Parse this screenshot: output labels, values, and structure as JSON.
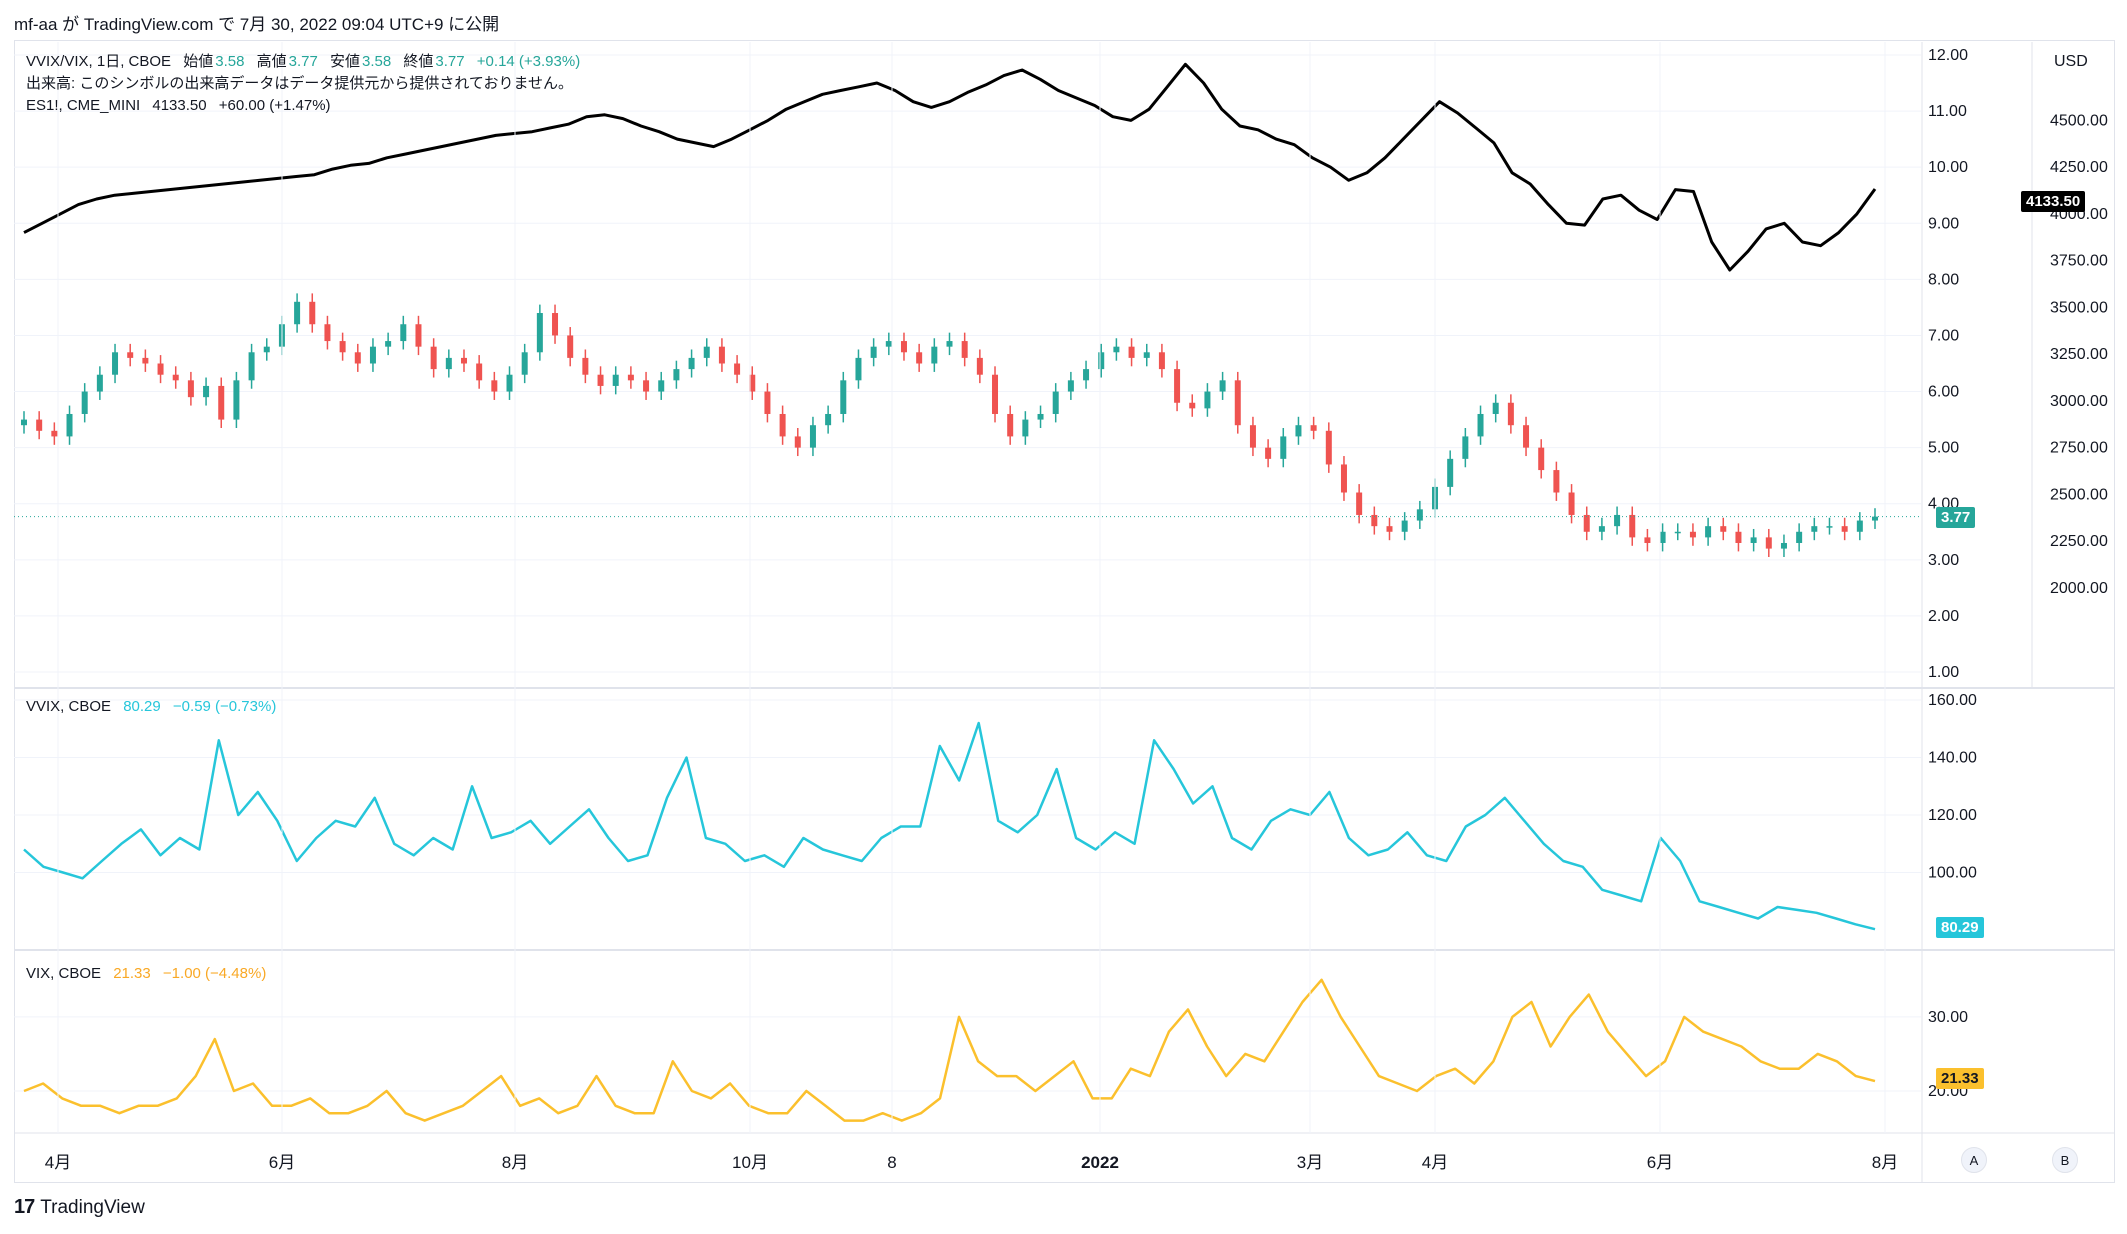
{
  "header": {
    "text": "mf-aa が TradingView.com で 7月 30, 2022 09:04 UTC+9 に公開"
  },
  "legend_main": {
    "symbol": "VVIX/VIX, 1日, CBOE",
    "o_label": "始値",
    "o_val": "3.58",
    "h_label": "高値",
    "h_val": "3.77",
    "l_label": "安値",
    "l_val": "3.58",
    "c_label": "終値",
    "c_val": "3.77",
    "change": "+0.14 (+3.93%)",
    "volume_note": "出来高: このシンボルの出来高データはデータ提供元から提供されておりません。",
    "es_symbol": "ES1!, CME_MINI",
    "es_val": "4133.50",
    "es_change": "+60.00 (+1.47%)"
  },
  "legend_vvix": {
    "symbol": "VVIX, CBOE",
    "val": "80.29",
    "change": "−0.59 (−0.73%)"
  },
  "legend_vix": {
    "symbol": "VIX, CBOE",
    "val": "21.33",
    "change": "−1.00 (−4.48%)"
  },
  "price_tags": {
    "es": "4133.50",
    "ratio": "3.77",
    "vvix": "80.29",
    "vix": "21.33"
  },
  "axis_buttons": {
    "a": "A",
    "b": "B"
  },
  "footer": {
    "logo_mark": "17",
    "logo_text": "TradingView"
  },
  "colors": {
    "up": "#26a69a",
    "down": "#ef5350",
    "vvix": "#26c6da",
    "vix": "#fbc02d",
    "es": "#000000"
  },
  "chart_data": [
    {
      "type": "candlestick",
      "series": [
        {
          "name": "VVIX/VIX"
        }
      ],
      "y_ticks": [
        "12.00",
        "11.00",
        "10.00",
        "9.00",
        "8.00",
        "7.00",
        "6.00",
        "5.00",
        "4.00",
        "3.00",
        "2.00",
        "1.00"
      ],
      "ylim": [
        1,
        12
      ],
      "last": 3.77,
      "values": [
        5.5,
        5.3,
        5.2,
        5.6,
        6.0,
        6.3,
        6.7,
        6.6,
        6.5,
        6.3,
        6.2,
        5.9,
        6.1,
        5.5,
        6.2,
        6.7,
        6.8,
        7.2,
        7.6,
        7.2,
        6.9,
        6.7,
        6.5,
        6.8,
        6.9,
        7.2,
        6.8,
        6.4,
        6.6,
        6.5,
        6.2,
        6.0,
        6.3,
        6.7,
        7.4,
        7.0,
        6.6,
        6.3,
        6.1,
        6.3,
        6.2,
        6.0,
        6.2,
        6.4,
        6.6,
        6.8,
        6.5,
        6.3,
        6.0,
        5.6,
        5.2,
        5.0,
        5.4,
        5.6,
        6.2,
        6.6,
        6.8,
        6.9,
        6.7,
        6.5,
        6.8,
        6.9,
        6.6,
        6.3,
        5.6,
        5.2,
        5.5,
        5.6,
        6.0,
        6.2,
        6.4,
        6.7,
        6.8,
        6.6,
        6.7,
        6.4,
        5.8,
        5.7,
        6.0,
        6.2,
        5.4,
        5.0,
        4.8,
        5.2,
        5.4,
        5.3,
        4.7,
        4.2,
        3.8,
        3.6,
        3.5,
        3.7,
        3.9,
        4.3,
        4.8,
        5.2,
        5.6,
        5.8,
        5.4,
        5.0,
        4.6,
        4.2,
        3.8,
        3.5,
        3.6,
        3.8,
        3.4,
        3.3,
        3.5,
        3.5,
        3.4,
        3.6,
        3.5,
        3.3,
        3.4,
        3.2,
        3.3,
        3.5,
        3.6,
        3.6,
        3.5,
        3.7,
        3.77
      ]
    },
    {
      "type": "line",
      "series": [
        {
          "name": "ES1!"
        }
      ],
      "y_ticks": [
        "4500.00",
        "4250.00",
        "4000.00",
        "3750.00",
        "3500.00",
        "3250.00",
        "3000.00",
        "2750.00",
        "2500.00",
        "2250.00",
        "2000.00"
      ],
      "ylim": [
        1550,
        4850
      ],
      "values": [
        3900,
        3950,
        4000,
        4050,
        4080,
        4100,
        4110,
        4120,
        4130,
        4140,
        4150,
        4160,
        4170,
        4180,
        4190,
        4200,
        4210,
        4240,
        4260,
        4270,
        4300,
        4320,
        4340,
        4360,
        4380,
        4400,
        4420,
        4430,
        4440,
        4460,
        4480,
        4520,
        4530,
        4510,
        4470,
        4440,
        4400,
        4380,
        4360,
        4400,
        4450,
        4500,
        4560,
        4600,
        4640,
        4660,
        4680,
        4700,
        4660,
        4600,
        4570,
        4600,
        4650,
        4690,
        4740,
        4770,
        4720,
        4660,
        4620,
        4580,
        4520,
        4500,
        4560,
        4680,
        4800,
        4700,
        4560,
        4470,
        4450,
        4400,
        4370,
        4300,
        4250,
        4180,
        4220,
        4300,
        4400,
        4500,
        4600,
        4540,
        4460,
        4380,
        4220,
        4160,
        4050,
        3950,
        3940,
        4080,
        4100,
        4020,
        3970,
        4130,
        4120,
        3850,
        3700,
        3800,
        3920,
        3950,
        3850,
        3830,
        3900,
        4000,
        4133.5
      ]
    },
    {
      "type": "line",
      "series": [
        {
          "name": "VVIX"
        }
      ],
      "y_ticks": [
        "160.00",
        "140.00",
        "120.00",
        "100.00"
      ],
      "ylim": [
        80,
        160
      ],
      "last": 80.29,
      "values": [
        108,
        102,
        100,
        98,
        104,
        110,
        115,
        106,
        112,
        108,
        146,
        120,
        128,
        118,
        104,
        112,
        118,
        116,
        126,
        110,
        106,
        112,
        108,
        130,
        112,
        114,
        118,
        110,
        116,
        122,
        112,
        104,
        106,
        126,
        140,
        112,
        110,
        104,
        106,
        102,
        112,
        108,
        106,
        104,
        112,
        116,
        116,
        144,
        132,
        152,
        118,
        114,
        120,
        136,
        112,
        108,
        114,
        110,
        146,
        136,
        124,
        130,
        112,
        108,
        118,
        122,
        120,
        128,
        112,
        106,
        108,
        114,
        106,
        104,
        116,
        120,
        126,
        118,
        110,
        104,
        102,
        94,
        92,
        90,
        112,
        104,
        90,
        88,
        86,
        84,
        88,
        87,
        86,
        84,
        82,
        80.29
      ]
    },
    {
      "type": "line",
      "series": [
        {
          "name": "VIX"
        }
      ],
      "y_ticks": [
        "30.00",
        "20.00"
      ],
      "ylim": [
        15,
        37
      ],
      "last": 21.33,
      "values": [
        20,
        21,
        19,
        18,
        18,
        17,
        18,
        18,
        19,
        22,
        27,
        20,
        21,
        18,
        18,
        19,
        17,
        17,
        18,
        20,
        17,
        16,
        17,
        18,
        20,
        22,
        18,
        19,
        17,
        18,
        22,
        18,
        17,
        17,
        24,
        20,
        19,
        21,
        18,
        17,
        17,
        20,
        18,
        16,
        16,
        17,
        16,
        17,
        19,
        30,
        24,
        22,
        22,
        20,
        22,
        24,
        19,
        19,
        23,
        22,
        28,
        31,
        26,
        22,
        25,
        24,
        28,
        32,
        35,
        30,
        26,
        22,
        21,
        20,
        22,
        23,
        21,
        24,
        30,
        32,
        26,
        30,
        33,
        28,
        25,
        22,
        24,
        30,
        28,
        27,
        26,
        24,
        23,
        23,
        25,
        24,
        22,
        21.33
      ]
    }
  ],
  "x_axis": {
    "ticks": [
      "4月",
      "6月",
      "8月",
      "10月",
      "8",
      "2022",
      "3月",
      "4月",
      "6月",
      "8月"
    ]
  }
}
